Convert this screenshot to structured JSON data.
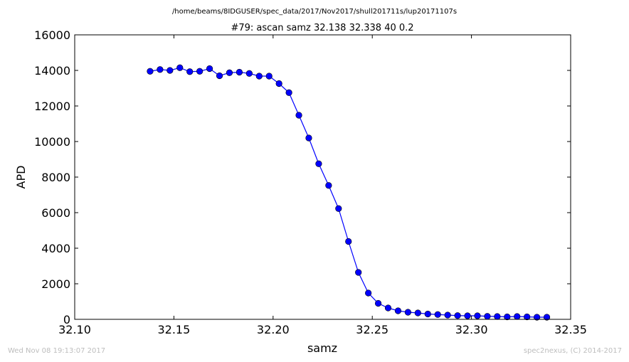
{
  "chart_data": {
    "type": "line",
    "suptitle": "/home/beams/8IDGUSER/spec_data/2017/Nov2017/shull201711s/lup20171107s",
    "title": "#79: ascan  samz 32.138 32.338  40 0.2",
    "xlabel": "samz",
    "ylabel": "APD",
    "xlim": [
      32.1,
      32.35
    ],
    "ylim": [
      0,
      16000
    ],
    "xticks": [
      "32.10",
      "32.15",
      "32.20",
      "32.25",
      "32.30",
      "32.35"
    ],
    "yticks": [
      "0",
      "2000",
      "4000",
      "6000",
      "8000",
      "10000",
      "12000",
      "14000",
      "16000"
    ],
    "grid": false,
    "line_color": "#0000ff",
    "marker": "circle",
    "series": [
      {
        "x": [
          32.138,
          32.143,
          32.148,
          32.153,
          32.158,
          32.163,
          32.168,
          32.173,
          32.178,
          32.183,
          32.188,
          32.193,
          32.198,
          32.203,
          32.208,
          32.213,
          32.218,
          32.223,
          32.228,
          32.233,
          32.238,
          32.243,
          32.248,
          32.253,
          32.258,
          32.263,
          32.268,
          32.273,
          32.278,
          32.283,
          32.288,
          32.293,
          32.298,
          32.303,
          32.308,
          32.313,
          32.318,
          32.323,
          32.328,
          32.333,
          32.338
        ],
        "y": [
          13950,
          14050,
          14000,
          14150,
          13930,
          13950,
          14100,
          13700,
          13870,
          13900,
          13830,
          13680,
          13680,
          13260,
          12750,
          11480,
          10200,
          8750,
          7530,
          6230,
          4380,
          2640,
          1480,
          900,
          640,
          480,
          400,
          360,
          300,
          270,
          240,
          210,
          200,
          200,
          170,
          160,
          140,
          160,
          140,
          120,
          120
        ]
      }
    ]
  },
  "footer": {
    "timestamp": "Wed Nov 08 19:13:07 2017",
    "credit": "spec2nexus, (C) 2014-2017"
  }
}
